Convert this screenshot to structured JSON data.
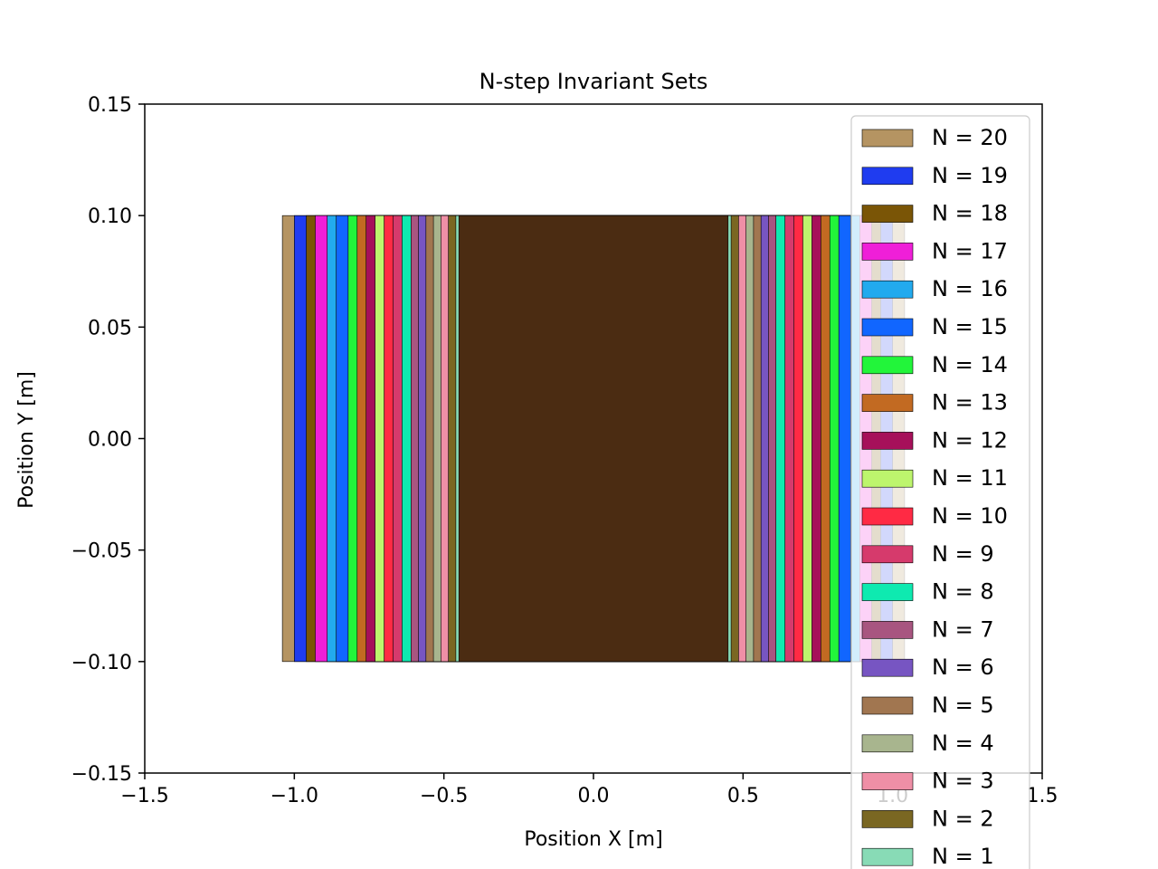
{
  "chart_data": {
    "type": "area",
    "title": "N-step Invariant Sets",
    "xlabel": "Position X [m]",
    "ylabel": "Position Y [m]",
    "xlim": [
      -1.5,
      1.5
    ],
    "ylim": [
      -0.15,
      0.15
    ],
    "xticks": [
      -1.5,
      -1.0,
      -0.5,
      0.0,
      0.5,
      1.0,
      1.5
    ],
    "xtick_labels": [
      "−1.5",
      "−1.0",
      "−0.5",
      "0.0",
      "0.5",
      "1.0",
      "1.5"
    ],
    "yticks": [
      0.15,
      0.1,
      0.05,
      0.0,
      -0.05,
      -0.1,
      -0.15
    ],
    "ytick_labels": [
      "0.15",
      "0.10",
      "0.05",
      "0.00",
      "−0.05",
      "−0.10",
      "−0.15"
    ],
    "grid": false,
    "legend_position": "right",
    "series": [
      {
        "name": "N = 20",
        "color": "#b59462",
        "x_range": [
          -1.04,
          1.04
        ],
        "y_range": [
          -0.1,
          0.1
        ]
      },
      {
        "name": "N = 19",
        "color": "#1f3cf0",
        "x_range": [
          -1.0,
          1.0
        ],
        "y_range": [
          -0.1,
          0.1
        ]
      },
      {
        "name": "N = 18",
        "color": "#7a5506",
        "x_range": [
          -0.96,
          0.96
        ],
        "y_range": [
          -0.1,
          0.1
        ]
      },
      {
        "name": "N = 17",
        "color": "#ef1fd8",
        "x_range": [
          -0.93,
          0.93
        ],
        "y_range": [
          -0.1,
          0.1
        ]
      },
      {
        "name": "N = 16",
        "color": "#22aaee",
        "x_range": [
          -0.89,
          0.89
        ],
        "y_range": [
          -0.1,
          0.1
        ]
      },
      {
        "name": "N = 15",
        "color": "#1166ff",
        "x_range": [
          -0.86,
          0.86
        ],
        "y_range": [
          -0.1,
          0.1
        ]
      },
      {
        "name": "N = 14",
        "color": "#22f53a",
        "x_range": [
          -0.82,
          0.82
        ],
        "y_range": [
          -0.1,
          0.1
        ]
      },
      {
        "name": "N = 13",
        "color": "#c26a22",
        "x_range": [
          -0.79,
          0.79
        ],
        "y_range": [
          -0.1,
          0.1
        ]
      },
      {
        "name": "N = 12",
        "color": "#a6105a",
        "x_range": [
          -0.76,
          0.76
        ],
        "y_range": [
          -0.1,
          0.1
        ]
      },
      {
        "name": "N = 11",
        "color": "#bdf56d",
        "x_range": [
          -0.73,
          0.73
        ],
        "y_range": [
          -0.1,
          0.1
        ]
      },
      {
        "name": "N = 10",
        "color": "#ff2a44",
        "x_range": [
          -0.7,
          0.7
        ],
        "y_range": [
          -0.1,
          0.1
        ]
      },
      {
        "name": "N = 9",
        "color": "#d63a6c",
        "x_range": [
          -0.67,
          0.67
        ],
        "y_range": [
          -0.1,
          0.1
        ]
      },
      {
        "name": "N = 8",
        "color": "#0eeab0",
        "x_range": [
          -0.64,
          0.64
        ],
        "y_range": [
          -0.1,
          0.1
        ]
      },
      {
        "name": "N = 7",
        "color": "#a85580",
        "x_range": [
          -0.61,
          0.61
        ],
        "y_range": [
          -0.1,
          0.1
        ]
      },
      {
        "name": "N = 6",
        "color": "#7755c2",
        "x_range": [
          -0.585,
          0.585
        ],
        "y_range": [
          -0.1,
          0.1
        ]
      },
      {
        "name": "N = 5",
        "color": "#a17650",
        "x_range": [
          -0.56,
          0.56
        ],
        "y_range": [
          -0.1,
          0.1
        ]
      },
      {
        "name": "N = 4",
        "color": "#a8b58e",
        "x_range": [
          -0.535,
          0.535
        ],
        "y_range": [
          -0.1,
          0.1
        ]
      },
      {
        "name": "N = 3",
        "color": "#ef8fa6",
        "x_range": [
          -0.51,
          0.51
        ],
        "y_range": [
          -0.1,
          0.1
        ]
      },
      {
        "name": "N = 2",
        "color": "#7a6722",
        "x_range": [
          -0.485,
          0.485
        ],
        "y_range": [
          -0.1,
          0.1
        ]
      },
      {
        "name": "N = 1",
        "color": "#88dbb6",
        "x_range": [
          -0.46,
          0.46
        ],
        "y_range": [
          -0.1,
          0.1
        ]
      },
      {
        "name": "",
        "color": "#4b2c12",
        "x_range": [
          -0.45,
          0.45
        ],
        "y_range": [
          -0.1,
          0.1
        ]
      }
    ]
  }
}
